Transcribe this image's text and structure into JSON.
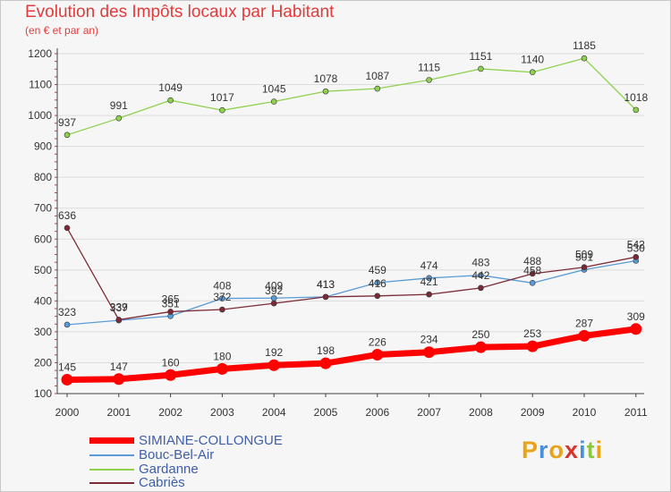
{
  "title": "Evolution des Impôts locaux par Habitant",
  "subtitle": "(en € et par an)",
  "logo": "Proxiti",
  "chart_data": {
    "type": "line",
    "title": "Evolution des Impôts locaux par Habitant",
    "subtitle": "(en € et par an)",
    "x": [
      "2000",
      "2001",
      "2002",
      "2003",
      "2004",
      "2005",
      "2006",
      "2007",
      "2008",
      "2009",
      "2010",
      "2011"
    ],
    "ylim": [
      100,
      1200
    ],
    "yticks": [
      100,
      200,
      300,
      400,
      500,
      600,
      700,
      800,
      900,
      1000,
      1100,
      1200
    ],
    "grid": "horizontal",
    "legend_position": "bottom-left",
    "series": [
      {
        "name": "SIMIANE-COLLONGUE",
        "color": "#ff0000",
        "values": [
          145,
          147,
          160,
          180,
          192,
          198,
          226,
          234,
          250,
          253,
          287,
          309
        ]
      },
      {
        "name": "Bouc-Bel-Air",
        "color": "#5b9bd5",
        "values": [
          323,
          337,
          351,
          408,
          409,
          413,
          459,
          474,
          483,
          458,
          501,
          530
        ]
      },
      {
        "name": "Gardanne",
        "color": "#8fd14f",
        "values": [
          937,
          991,
          1049,
          1017,
          1045,
          1078,
          1087,
          1115,
          1151,
          1140,
          1185,
          1018
        ]
      },
      {
        "name": "Cabriès",
        "color": "#7b2b35",
        "values": [
          636,
          339,
          365,
          372,
          392,
          413,
          416,
          421,
          442,
          488,
          509,
          542
        ]
      }
    ]
  }
}
